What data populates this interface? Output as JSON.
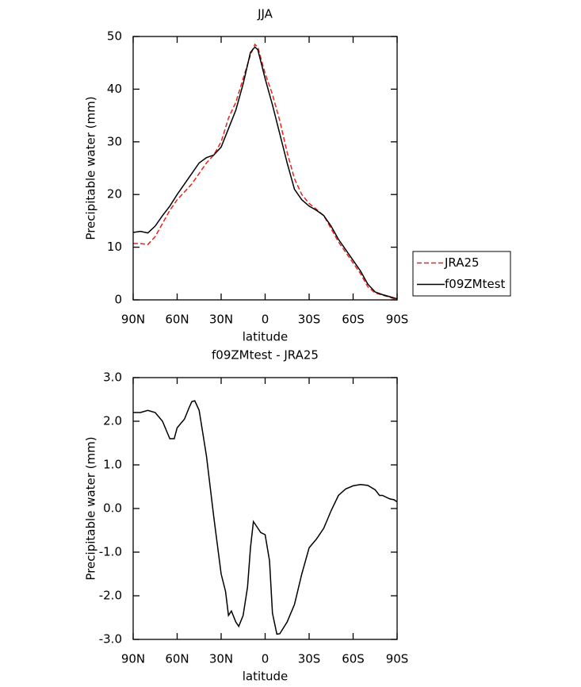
{
  "chart_data": [
    {
      "type": "line",
      "title": "JJA",
      "xlabel": "latitude",
      "ylabel": "Precipitable water (mm)",
      "x": [
        90,
        85,
        80,
        75,
        70,
        65,
        60,
        55,
        50,
        45,
        40,
        35,
        30,
        25,
        20,
        15,
        10,
        7,
        5,
        0,
        -5,
        -10,
        -15,
        -20,
        -25,
        -30,
        -35,
        -40,
        -45,
        -50,
        -55,
        -60,
        -65,
        -70,
        -75,
        -80,
        -85,
        -90
      ],
      "series": [
        {
          "name": "JRA25",
          "color": "#e8231c",
          "style": "dashed",
          "values": [
            10.7,
            10.7,
            10.5,
            12,
            14.5,
            17,
            19,
            20.5,
            22,
            24,
            26,
            27.5,
            30,
            34.5,
            37.5,
            42,
            46.5,
            48.5,
            48,
            43,
            39,
            34,
            28,
            23,
            20,
            18.3,
            17.2,
            16,
            13.5,
            11,
            9,
            7,
            5,
            2.5,
            1.3,
            0.9,
            0.5,
            0
          ]
        },
        {
          "name": "f09ZMtest",
          "color": "#000000",
          "style": "solid",
          "values": [
            12.8,
            13,
            12.7,
            14,
            16,
            17.8,
            20,
            22,
            24,
            26,
            27,
            27.5,
            29,
            32.5,
            36,
            41,
            47,
            48,
            47.5,
            42,
            37,
            31.5,
            26,
            21,
            19,
            17.8,
            17,
            16,
            14,
            11.5,
            9.5,
            7.5,
            5.5,
            3,
            1.5,
            1,
            0.6,
            0.2
          ]
        }
      ],
      "xlim": [
        90,
        -90
      ],
      "xticks": [
        {
          "value": 90,
          "label": "90N"
        },
        {
          "value": 60,
          "label": "60N"
        },
        {
          "value": 30,
          "label": "30N"
        },
        0,
        {
          "value": -30,
          "label": "30S"
        },
        {
          "value": -60,
          "label": "60S"
        },
        {
          "value": -90,
          "label": "90S"
        }
      ],
      "ylim": [
        0,
        50
      ],
      "yticks": [
        0,
        10,
        20,
        30,
        40,
        50
      ],
      "legend": "right"
    },
    {
      "type": "line",
      "title": "f09ZMtest - JRA25",
      "xlabel": "latitude",
      "ylabel": "Precipitable water (mm)",
      "x": [
        90,
        85,
        80,
        75,
        70,
        65,
        62,
        60,
        55,
        52,
        50,
        48,
        45,
        40,
        35,
        30,
        27,
        25,
        23,
        20,
        18,
        15,
        12,
        10,
        8,
        5,
        3,
        0,
        -3,
        -5,
        -8,
        -10,
        -15,
        -20,
        -25,
        -30,
        -35,
        -40,
        -45,
        -50,
        -55,
        -60,
        -65,
        -70,
        -75,
        -78,
        -80,
        -85,
        -88,
        -90
      ],
      "series": [
        {
          "name": "f09ZMtest - JRA25",
          "color": "#000000",
          "style": "solid",
          "values": [
            2.2,
            2.2,
            2.25,
            2.2,
            2.0,
            1.6,
            1.6,
            1.85,
            2.05,
            2.3,
            2.45,
            2.47,
            2.25,
            1.2,
            -0.2,
            -1.5,
            -1.9,
            -2.45,
            -2.35,
            -2.6,
            -2.7,
            -2.45,
            -1.8,
            -0.9,
            -0.3,
            -0.45,
            -0.55,
            -0.6,
            -1.2,
            -2.4,
            -2.88,
            -2.87,
            -2.6,
            -2.2,
            -1.5,
            -0.9,
            -0.7,
            -0.45,
            -0.05,
            0.3,
            0.45,
            0.52,
            0.55,
            0.53,
            0.43,
            0.3,
            0.3,
            0.22,
            0.2,
            0.15
          ]
        }
      ],
      "xlim": [
        90,
        -90
      ],
      "xticks": [
        {
          "value": 90,
          "label": "90N"
        },
        {
          "value": 60,
          "label": "60N"
        },
        {
          "value": 30,
          "label": "30N"
        },
        0,
        {
          "value": -30,
          "label": "30S"
        },
        {
          "value": -60,
          "label": "60S"
        },
        {
          "value": -90,
          "label": "90S"
        }
      ],
      "ylim": [
        -3,
        3
      ],
      "yticks": [
        {
          "value": -3,
          "label": "-3.0"
        },
        {
          "value": -2,
          "label": "-2.0"
        },
        {
          "value": -1,
          "label": "-1.0"
        },
        {
          "value": 0,
          "label": "0.0"
        },
        {
          "value": 1,
          "label": "1.0"
        },
        {
          "value": 2,
          "label": "2.0"
        },
        {
          "value": 3,
          "label": "3.0"
        }
      ]
    }
  ]
}
